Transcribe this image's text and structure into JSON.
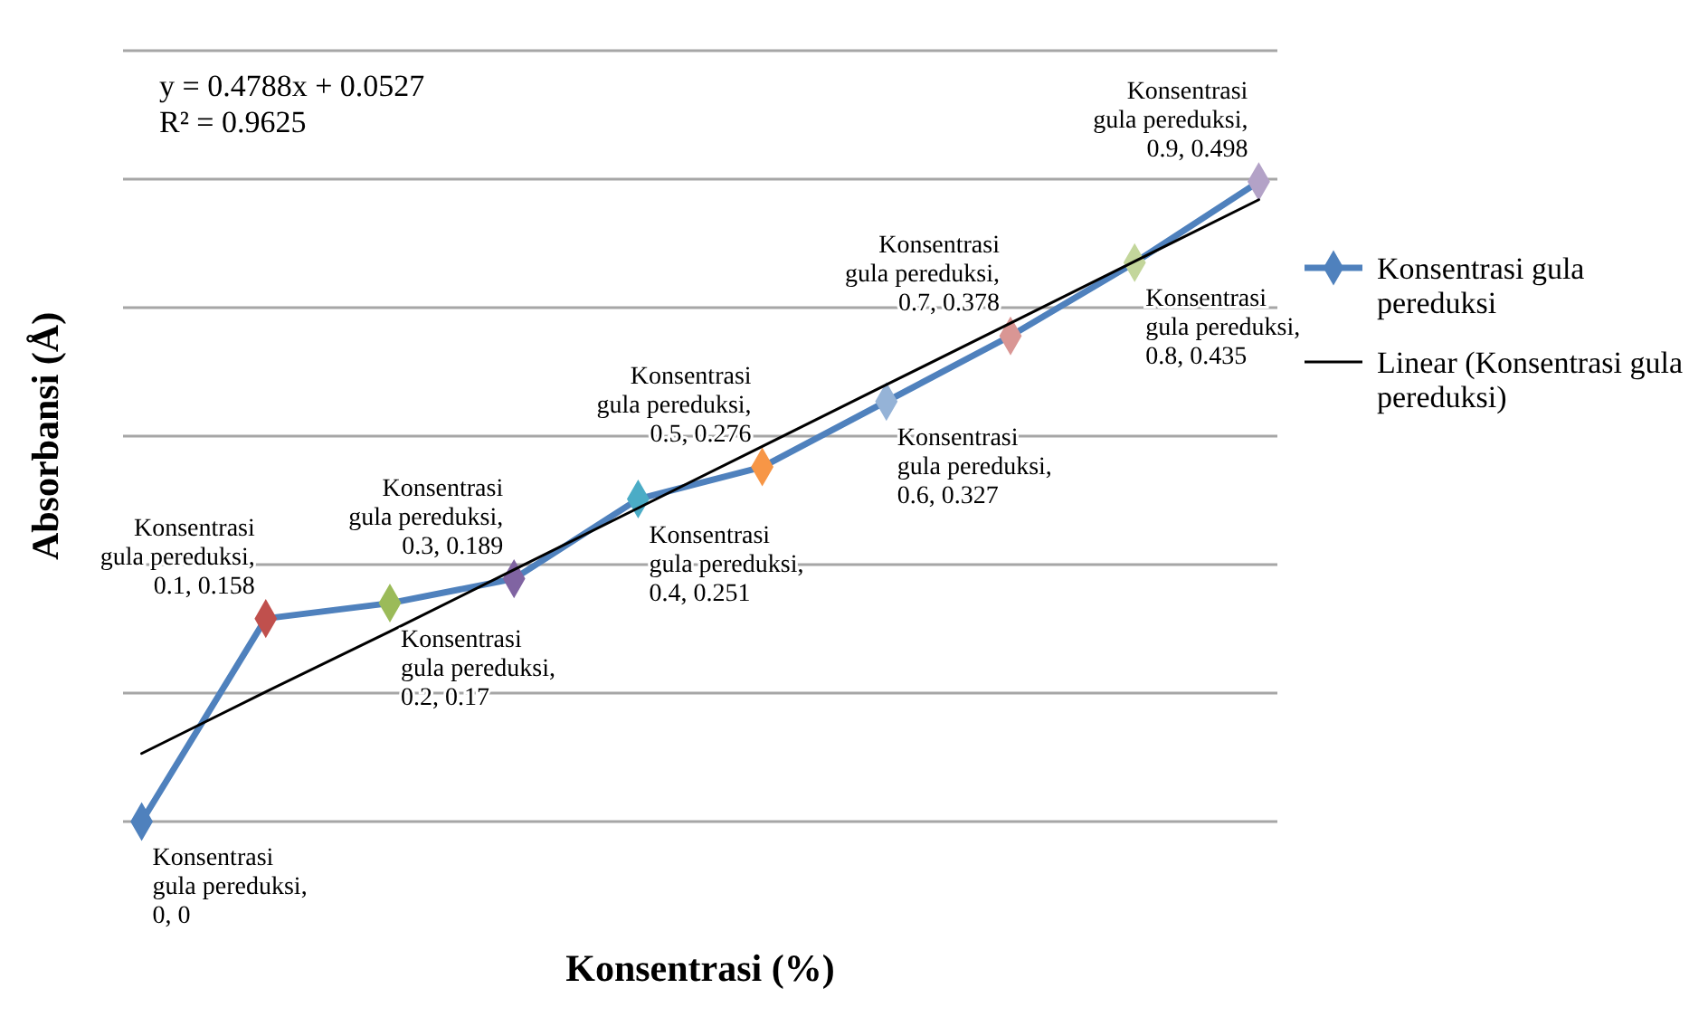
{
  "chart_data": {
    "type": "line",
    "xlabel": "Konsentrasi (%)",
    "ylabel": "Absorbansi (Å)",
    "categories": [
      null,
      null,
      null,
      null,
      null,
      null,
      null,
      null,
      null,
      null
    ],
    "ylim": [
      0,
      0.6
    ],
    "yticks": [
      {
        "value": 0,
        "label": null
      },
      {
        "value": 0.1,
        "label": null
      },
      {
        "value": 0.2,
        "label": null
      },
      {
        "value": 0.3,
        "label": null
      },
      {
        "value": 0.4,
        "label": null
      },
      {
        "value": 0.5,
        "label": null
      }
    ],
    "grid": "y",
    "legend": "right",
    "annotations": [
      "y = 0.4788x + 0.0527",
      "R² = 0.9625"
    ],
    "series": [
      {
        "name": "Konsentrasi gula pereduksi",
        "color": "#4f81bd",
        "marker": "diamond",
        "colors": [
          "#4f81bd",
          "#c0504d",
          "#9bbb59",
          "#8064a2",
          "#4bacc6",
          "#f79646",
          "#95b3d7",
          "#d99694",
          "#c3d69b",
          "#b3a2c7"
        ],
        "values": [
          0,
          0.158,
          0.17,
          0.189,
          0.251,
          0.276,
          0.327,
          0.378,
          0.435,
          0.498
        ],
        "value_labels": [
          "Konsentrasi gula pereduksi, 0, 0",
          "Konsentrasi gula pereduksi, 0.1, 0.158",
          "Konsentrasi gula pereduksi, 0.2, 0.17",
          "Konsentrasi gula pereduksi, 0.3, 0.189",
          "Konsentrasi gula pereduksi, 0.4, 0.251",
          "Konsentrasi gula pereduksi, 0.5, 0.276",
          "Konsentrasi gula pereduksi, 0.6, 0.327",
          "Konsentrasi gula pereduksi, 0.7, 0.378",
          "Konsentrasi gula pereduksi, 0.8, 0.435",
          "Konsentrasi gula pereduksi, 0.9, 0.498"
        ]
      },
      {
        "name": "Linear (Konsentrasi gula pereduksi)",
        "type": "line",
        "color": "#000000",
        "values": [
          0.053,
          0.101,
          0.148,
          0.196,
          0.244,
          0.292,
          0.34,
          0.388,
          0.436,
          0.484
        ]
      }
    ]
  }
}
